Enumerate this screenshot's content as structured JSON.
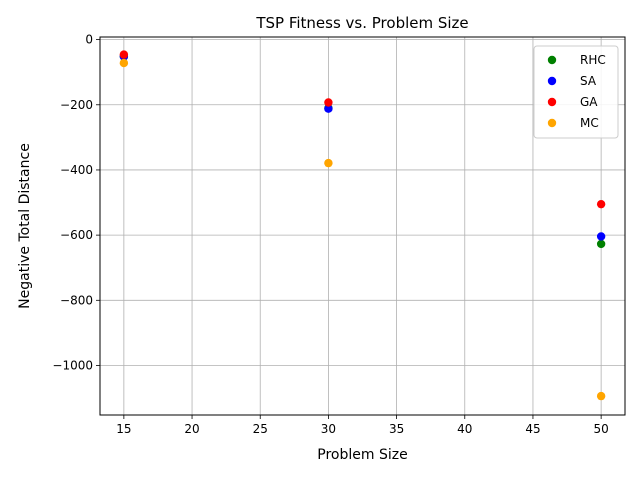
{
  "chart_data": {
    "type": "scatter",
    "title": "TSP Fitness vs. Problem Size",
    "xlabel": "Problem Size",
    "ylabel": "Negative Total Distance",
    "xlim": [
      13.25,
      51.75
    ],
    "ylim": [
      -1152,
      8
    ],
    "xticks": [
      15,
      20,
      25,
      30,
      35,
      40,
      45,
      50
    ],
    "yticks": [
      0,
      -200,
      -400,
      -600,
      -800,
      -1000
    ],
    "ytick_labels": [
      "0",
      "−200",
      "−400",
      "−600",
      "−800",
      "−1000"
    ],
    "grid": true,
    "legend_position": "top-right",
    "series": [
      {
        "name": "RHC",
        "color": "#008000",
        "x": [
          15,
          30,
          50
        ],
        "y": [
          -52,
          -210,
          -627
        ]
      },
      {
        "name": "SA",
        "color": "#0000ff",
        "x": [
          15,
          30,
          50
        ],
        "y": [
          -52,
          -212,
          -604
        ]
      },
      {
        "name": "GA",
        "color": "#ff0000",
        "x": [
          15,
          30,
          50
        ],
        "y": [
          -46,
          -193,
          -505
        ]
      },
      {
        "name": "MC",
        "color": "#ffa500",
        "x": [
          15,
          30,
          50
        ],
        "y": [
          -72,
          -379,
          -1094
        ]
      }
    ]
  }
}
